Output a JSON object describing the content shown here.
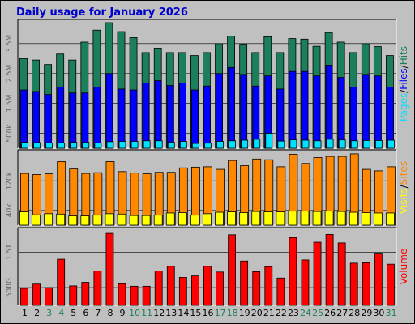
{
  "chart_data": {
    "type": "bar",
    "title": "Daily usage for January 2026",
    "categories": [
      "1",
      "2",
      "3",
      "4",
      "5",
      "6",
      "7",
      "8",
      "9",
      "10",
      "11",
      "12",
      "13",
      "14",
      "15",
      "16",
      "17",
      "18",
      "19",
      "20",
      "21",
      "22",
      "23",
      "24",
      "25",
      "26",
      "27",
      "28",
      "29",
      "30",
      "31"
    ],
    "weekend_days": [
      "3",
      "4",
      "10",
      "11",
      "17",
      "18",
      "24",
      "25",
      "31"
    ],
    "panels": [
      {
        "id": "top",
        "ylabel": [
          "Pages",
          "Files",
          "Hits"
        ],
        "ticks": [
          {
            "label": "3.5M",
            "value": 3500000
          },
          {
            "label": "2.5M",
            "value": 2500000
          },
          {
            "label": "1.5M",
            "value": 1500000
          },
          {
            "label": "500k",
            "value": 500000
          }
        ],
        "ylim": [
          0,
          4200000
        ],
        "series": [
          {
            "name": "Hits",
            "values": [
              3000000,
              2950000,
              2800000,
              3150000,
              2950000,
              3550000,
              3950000,
              4200000,
              3900000,
              3700000,
              3200000,
              3350000,
              3200000,
              3200000,
              3100000,
              3200000,
              3500000,
              3750000,
              3480000,
              3200000,
              3730000,
              3200000,
              3670000,
              3650000,
              3410000,
              3870000,
              3550000,
              3200000,
              3500000,
              3400000,
              3100000
            ]
          },
          {
            "name": "Files",
            "values": [
              1950000,
              1900000,
              1800000,
              2050000,
              1850000,
              1850000,
              2050000,
              2500000,
              1980000,
              1950000,
              2180000,
              2260000,
              2100000,
              2180000,
              1950000,
              2080000,
              2500000,
              2700000,
              2470000,
              2080000,
              2420000,
              1980000,
              2570000,
              2570000,
              2420000,
              2780000,
              2370000,
              2050000,
              2470000,
              2420000,
              2040000
            ]
          },
          {
            "name": "Pages",
            "values": [
              200000,
              190000,
              180000,
              180000,
              200000,
              200000,
              180000,
              220000,
              230000,
              230000,
              250000,
              250000,
              200000,
              230000,
              160000,
              170000,
              230000,
              250000,
              270000,
              300000,
              500000,
              240000,
              280000,
              270000,
              250000,
              300000,
              280000,
              250000,
              260000,
              260000,
              270000
            ]
          }
        ]
      },
      {
        "id": "middle",
        "ylabel": [
          "Visits",
          "Sites"
        ],
        "ticks": [
          {
            "label": "120k",
            "value": 120000
          },
          {
            "label": "40k",
            "value": 40000
          }
        ],
        "ylim": [
          0,
          195000
        ],
        "series": [
          {
            "name": "Sites",
            "values": [
              140000,
              137000,
              139000,
              172000,
              152000,
              140000,
              142000,
              172000,
              145000,
              141000,
              139000,
              143000,
              143000,
              155000,
              157000,
              158000,
              151000,
              175000,
              161000,
              179000,
              177000,
              158000,
              192000,
              167000,
              183000,
              186000,
              186000,
              193000,
              151000,
              147000,
              158000
            ]
          },
          {
            "name": "Visits",
            "values": [
              36000,
              28000,
              31000,
              30000,
              25000,
              25000,
              27000,
              31000,
              30000,
              26000,
              26000,
              27000,
              33000,
              34000,
              27000,
              31000,
              35000,
              36000,
              34000,
              37000,
              36000,
              36000,
              38000,
              38000,
              37000,
              38000,
              37000,
              35000,
              34000,
              33000,
              33000
            ]
          }
        ]
      },
      {
        "id": "bottom",
        "ylabel": [
          "Volume"
        ],
        "ticks": [
          {
            "label": "1.5T",
            "value": 1500000000000
          },
          {
            "label": "500G",
            "value": 500000000000
          }
        ],
        "ylim": [
          0,
          2100000000000
        ],
        "series": [
          {
            "name": "Volume",
            "values": [
              480000000000,
              600000000000,
              500000000000,
              1300000000000,
              550000000000,
              650000000000,
              970000000000,
              2030000000000,
              610000000000,
              540000000000,
              540000000000,
              970000000000,
              1100000000000,
              790000000000,
              830000000000,
              1100000000000,
              940000000000,
              1990000000000,
              1250000000000,
              950000000000,
              1090000000000,
              770000000000,
              1910000000000,
              1280000000000,
              1780000000000,
              2000000000000,
              1760000000000,
              1190000000000,
              1200000000000,
              1470000000000,
              1160000000000
            ]
          }
        ]
      }
    ]
  },
  "colors": {
    "background": "#c0c0c0",
    "plot": "#c0c0c0",
    "title": "#0000cc",
    "hits": "#1b7f5b",
    "files": "#0000ff",
    "pages": "#00e0ff",
    "sites": "#ff8800",
    "visits": "#ffff00",
    "volume": "#ff0000",
    "weekday_label": "#000000",
    "weekend_label": "#1b7f5b",
    "label_separator": "#000000"
  }
}
